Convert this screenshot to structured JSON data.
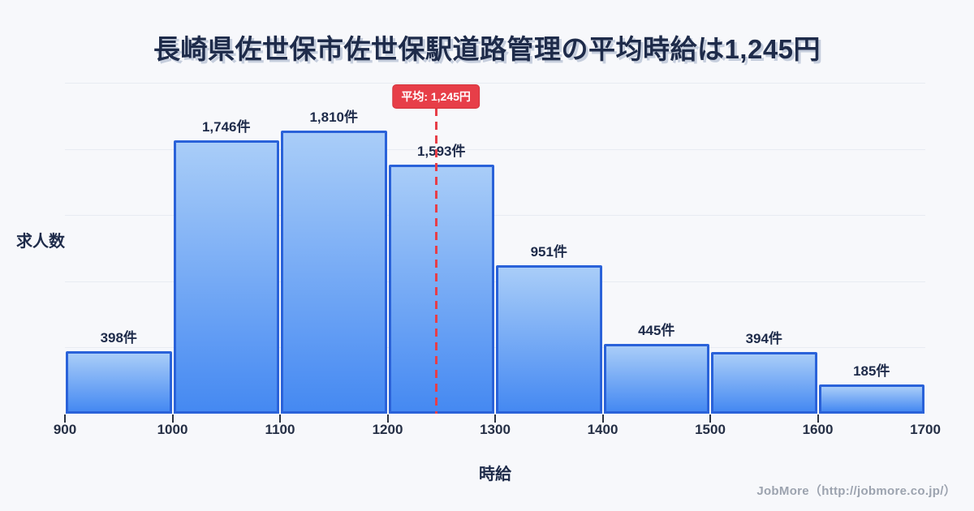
{
  "title": "長崎県佐世保市佐世保駅道路管理の平均時給は1,245円",
  "footer": "JobMore（http://jobmore.co.jp/）",
  "chart_data": {
    "type": "bar",
    "subtype": "histogram",
    "title": "長崎県佐世保市佐世保駅道路管理の平均時給は1,245円",
    "xlabel": "時給",
    "ylabel": "求人数",
    "x_range": [
      900,
      1700
    ],
    "bin_edges": [
      900,
      1000,
      1100,
      1200,
      1300,
      1400,
      1500,
      1600,
      1700
    ],
    "x_tick_labels": [
      "900",
      "1000",
      "1100",
      "1200",
      "1300",
      "1400",
      "1500",
      "1600",
      "1700"
    ],
    "values": [
      398,
      1746,
      1810,
      1593,
      951,
      445,
      394,
      185
    ],
    "bar_labels": [
      "398件",
      "1,746件",
      "1,810件",
      "1,593件",
      "951件",
      "445件",
      "394件",
      "185件"
    ],
    "average": 1245,
    "average_label": "平均: 1,245円",
    "grid": true,
    "legend": false
  },
  "colors": {
    "background": "#f7f8fb",
    "title_text": "#1e2b4a",
    "gridline": "#e8ebf2",
    "bar_fill_top": "#a9cdf8",
    "bar_fill_bottom": "#4589f2",
    "bar_border": "#2a62d9",
    "average_red": "#e73e48",
    "tick_text": "#252f45",
    "footer_text": "#9ca3af"
  }
}
